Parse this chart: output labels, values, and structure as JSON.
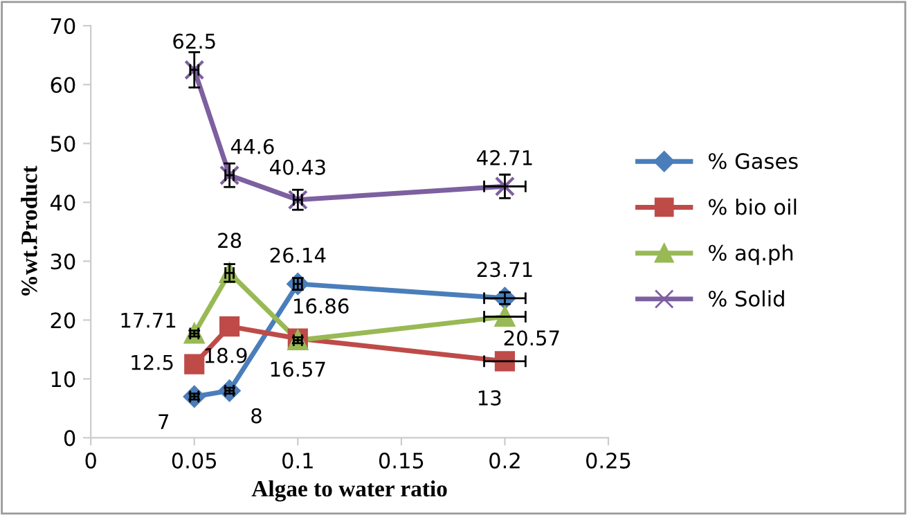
{
  "chart_data": {
    "type": "line",
    "xlabel": "Algae to water ratio",
    "ylabel": "%wt.Product",
    "x": [
      0.05,
      0.067,
      0.1,
      0.2
    ],
    "series": [
      {
        "name": "% Gases",
        "color": "#4a7ebb",
        "marker": "diamond",
        "values": [
          7,
          8,
          26.14,
          23.71
        ],
        "value_labels": [
          "7",
          "8",
          "26.14",
          "23.71"
        ],
        "errors": [
          0.5,
          0.5,
          1,
          1
        ],
        "xerrors": [
          0.002,
          0.002,
          0.002,
          0.01
        ]
      },
      {
        "name": "% bio oil",
        "color": "#be4b48",
        "marker": "square",
        "values": [
          12.5,
          18.9,
          16.86,
          13
        ],
        "value_labels": [
          "12.5",
          "18.9",
          "16.86",
          "13"
        ],
        "xerrors": [
          null,
          null,
          null,
          0.01
        ]
      },
      {
        "name": "% aq.ph",
        "color": "#98b954",
        "marker": "triangle",
        "values": [
          17.71,
          28,
          16.57,
          20.57
        ],
        "value_labels": [
          "17.71",
          "28",
          "16.57",
          "20.57"
        ],
        "errors": [
          0.5,
          1.5,
          0.5,
          null
        ],
        "xerrors": [
          0.002,
          0.002,
          0.002,
          0.01
        ]
      },
      {
        "name": "% Solid",
        "color": "#7d60a0",
        "marker": "cross",
        "values": [
          62.5,
          44.6,
          40.43,
          42.71
        ],
        "value_labels": [
          "62.5",
          "44.6",
          "40.43",
          "42.71"
        ],
        "errors": [
          3,
          2,
          1.7,
          2
        ],
        "xerrors": [
          0.002,
          0.002,
          0.002,
          0.01
        ]
      }
    ],
    "xlim": [
      0,
      0.25
    ],
    "xticks": [
      0,
      0.05,
      0.1,
      0.15,
      0.2,
      0.25
    ],
    "ylim": [
      0,
      70
    ],
    "yticks": [
      0,
      10,
      20,
      30,
      40,
      50,
      60,
      70
    ],
    "grid": false,
    "legend": "right"
  }
}
